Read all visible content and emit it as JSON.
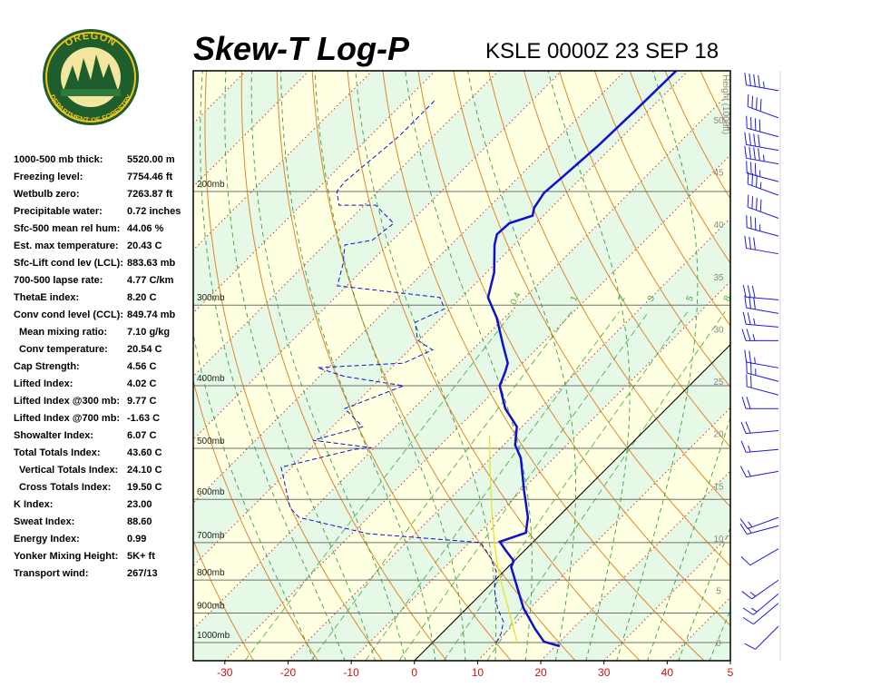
{
  "logo": {
    "top": "OREGON",
    "bottom": "DEPARTMENT OF FORESTRY"
  },
  "indices": [
    {
      "label": "1000-500 mb thick:",
      "value": "5520.00 m"
    },
    {
      "label": "Freezing level:",
      "value": "7754.46 ft"
    },
    {
      "label": "Wetbulb zero:",
      "value": "7263.87 ft"
    },
    {
      "label": "Precipitable water:",
      "value": "0.72 inches"
    },
    {
      "label": "Sfc-500 mean rel hum:",
      "value": "44.06 %"
    },
    {
      "label": "Est. max temperature:",
      "value": "20.43 C"
    },
    {
      "label": "Sfc-Lift cond lev (LCL):",
      "value": "883.63 mb"
    },
    {
      "label": "700-500 lapse rate:",
      "value": "4.77 C/km"
    },
    {
      "label": "ThetaE index:",
      "value": "8.20 C"
    },
    {
      "label": "Conv cond level (CCL):",
      "value": "849.74 mb"
    },
    {
      "label": "Mean mixing ratio:",
      "value": "7.10 g/kg"
    },
    {
      "label": "Conv temperature:",
      "value": "20.54 C"
    },
    {
      "label": "Cap Strength:",
      "value": "4.56 C"
    },
    {
      "label": "Lifted Index:",
      "value": "4.02 C"
    },
    {
      "label": "Lifted Index @300 mb:",
      "value": "9.77 C"
    },
    {
      "label": "Lifted Index @700 mb:",
      "value": "-1.63 C"
    },
    {
      "label": "Showalter Index:",
      "value": "6.07 C"
    },
    {
      "label": "Total Totals Index:",
      "value": "43.60 C"
    },
    {
      "label": "Vertical Totals Index:",
      "value": "24.10 C"
    },
    {
      "label": "Cross Totals Index:",
      "value": "19.50 C"
    },
    {
      "label": "K Index:",
      "value": "23.00"
    },
    {
      "label": "Sweat Index:",
      "value": "88.60"
    },
    {
      "label": "Energy Index:",
      "value": "0.99"
    },
    {
      "label": "Yonker Mixing Height:",
      "value": "5K+ ft"
    },
    {
      "label": "Transport wind:",
      "value": "267/13"
    }
  ],
  "chart_data": {
    "type": "skew-t",
    "title": "Skew-T Log-P",
    "subtitle": "KSLE 0000Z 23 SEP 18",
    "y2label": "Height (1000ft)",
    "xlim": [
      -35,
      50
    ],
    "xticks": [
      -30,
      -20,
      -10,
      0,
      10,
      20,
      30,
      40,
      {
        "value": 50,
        "label": "5"
      }
    ],
    "ylim": [
      1067,
      130
    ],
    "log_y": true,
    "yticks": [
      {
        "value": 200,
        "label": "200mb"
      },
      {
        "value": 300,
        "label": "300mb"
      },
      {
        "value": 400,
        "label": "400mb"
      },
      {
        "value": 500,
        "label": "500mb"
      },
      {
        "value": 600,
        "label": "600mb"
      },
      {
        "value": 700,
        "label": "700mb"
      },
      {
        "value": 800,
        "label": "800mb"
      },
      {
        "value": 900,
        "label": "900mb"
      },
      {
        "value": 1000,
        "label": "1000mb"
      }
    ],
    "y2lim": [
      -1.6,
      54.8
    ],
    "y2ticks": [
      0,
      5,
      10,
      15,
      20,
      25,
      30,
      35,
      40,
      45,
      50
    ],
    "mixing_ratios": [
      0.4,
      1,
      2,
      3,
      5,
      8
    ],
    "profiles": [
      {
        "color": "#1010d0",
        "style": "solid",
        "p": [
          1013,
          997,
          953,
          884,
          802,
          764,
          747,
          717,
          698,
          676,
          640,
          581,
          518,
          494,
          463,
          434,
          400,
          381,
          369,
          346,
          314,
          292,
          267,
          242,
          233,
          224,
          218,
          212,
          201,
          190,
          170,
          150,
          130
        ],
        "t": [
          20.7,
          17.5,
          14.1,
          8.9,
          3.3,
          0.5,
          -0.1,
          -3.3,
          -5.3,
          -2.6,
          -4.7,
          -9.6,
          -15.2,
          -18.2,
          -20.8,
          -25.5,
          -30.0,
          -31.3,
          -32.3,
          -35.9,
          -41.2,
          -45.8,
          -48.8,
          -53.1,
          -54.4,
          -54.2,
          -51.7,
          -52.7,
          -53.5,
          -53.1,
          -52.4,
          -52.1,
          -51.9
        ]
      },
      {
        "color": "#1010d0",
        "style": "dashed",
        "p": [
          1000,
          968,
          928,
          884,
          829,
          777,
          740,
          700,
          678,
          640,
          619,
          535,
          502,
          499,
          486,
          463,
          434,
          400,
          387,
          375,
          369,
          352,
          340,
          319,
          304,
          292,
          287,
          280,
          258,
          242,
          238,
          224,
          210,
          210,
          200,
          193,
          164,
          144
        ],
        "t": [
          10.1,
          9.4,
          7.9,
          4.8,
          1.5,
          -1.1,
          -4.1,
          -8.2,
          -27.5,
          -40.9,
          -43.8,
          -51.7,
          -43.0,
          -40.5,
          -50.9,
          -45.2,
          -50.9,
          -45.2,
          -56.0,
          -61.7,
          -48.8,
          -46.3,
          -50.2,
          -53.4,
          -50.9,
          -53.4,
          -60.7,
          -71.5,
          -74.2,
          -76.8,
          -73.2,
          -72.5,
          -78.2,
          -84.0,
          -86.5,
          -86.8,
          -85.4,
          -85.4
        ]
      },
      {
        "color": "#e8e020",
        "style": "thin",
        "p": [
          1000,
          943,
          884,
          802,
          752,
          705,
          619,
          544,
          478
        ],
        "t": [
          13.4,
          10.1,
          6.5,
          1.0,
          -2.4,
          -5.7,
          -11.9,
          -17.9,
          -23.7
        ]
      }
    ],
    "winds": {
      "color": "#1a1ae0",
      "height": [
        52.9,
        50.3,
        48.5,
        47.2,
        45.9,
        44.2,
        42.9,
        40.7,
        39.0,
        37.3,
        32.9,
        31.6,
        30.3,
        29.0,
        26.4,
        25.1,
        23.8,
        22.5,
        20.4,
        18.6,
        16.5,
        12.1,
        11.3,
        9.1,
        6.1,
        4.8,
        3.9,
        1.7
      ],
      "direction": [
        280,
        290,
        285,
        280,
        280,
        285,
        290,
        290,
        285,
        280,
        275,
        280,
        275,
        270,
        280,
        285,
        285,
        270,
        265,
        265,
        260,
        250,
        255,
        240,
        235,
        230,
        230,
        225
      ],
      "speed": [
        45,
        40,
        40,
        40,
        45,
        35,
        35,
        40,
        35,
        30,
        30,
        30,
        25,
        25,
        25,
        25,
        20,
        20,
        20,
        15,
        15,
        15,
        15,
        10,
        15,
        15,
        10,
        10
      ]
    }
  }
}
